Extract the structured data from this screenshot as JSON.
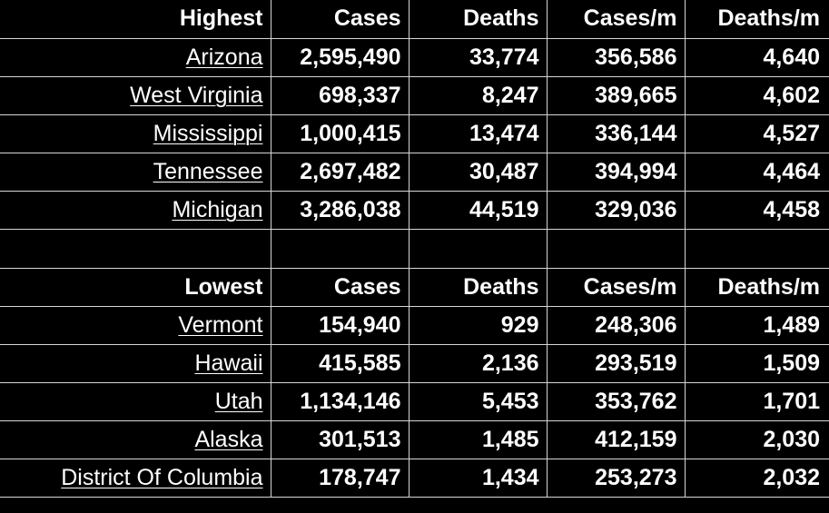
{
  "highest": {
    "headers": [
      "Highest",
      "Cases",
      "Deaths",
      "Cases/m",
      "Deaths/m"
    ],
    "rows": [
      {
        "state": "Arizona",
        "cases": "2,595,490",
        "deaths": "33,774",
        "cases_per_m": "356,586",
        "deaths_per_m": "4,640"
      },
      {
        "state": "West Virginia",
        "cases": "698,337",
        "deaths": "8,247",
        "cases_per_m": "389,665",
        "deaths_per_m": "4,602"
      },
      {
        "state": "Mississippi",
        "cases": "1,000,415",
        "deaths": "13,474",
        "cases_per_m": "336,144",
        "deaths_per_m": "4,527"
      },
      {
        "state": "Tennessee",
        "cases": "2,697,482",
        "deaths": "30,487",
        "cases_per_m": "394,994",
        "deaths_per_m": "4,464"
      },
      {
        "state": "Michigan",
        "cases": "3,286,038",
        "deaths": "44,519",
        "cases_per_m": "329,036",
        "deaths_per_m": "4,458"
      }
    ]
  },
  "lowest": {
    "headers": [
      "Lowest",
      "Cases",
      "Deaths",
      "Cases/m",
      "Deaths/m"
    ],
    "rows": [
      {
        "state": "Vermont",
        "cases": "154,940",
        "deaths": "929",
        "cases_per_m": "248,306",
        "deaths_per_m": "1,489"
      },
      {
        "state": "Hawaii",
        "cases": "415,585",
        "deaths": "2,136",
        "cases_per_m": "293,519",
        "deaths_per_m": "1,509"
      },
      {
        "state": "Utah",
        "cases": "1,134,146",
        "deaths": "5,453",
        "cases_per_m": "353,762",
        "deaths_per_m": "1,701"
      },
      {
        "state": "Alaska",
        "cases": "301,513",
        "deaths": "1,485",
        "cases_per_m": "412,159",
        "deaths_per_m": "2,030"
      },
      {
        "state": "District Of Columbia",
        "cases": "178,747",
        "deaths": "1,434",
        "cases_per_m": "253,273",
        "deaths_per_m": "2,032"
      }
    ]
  },
  "colors": {
    "background": "#000000",
    "text": "#ffffff",
    "gridline": "#d6d6d6"
  }
}
